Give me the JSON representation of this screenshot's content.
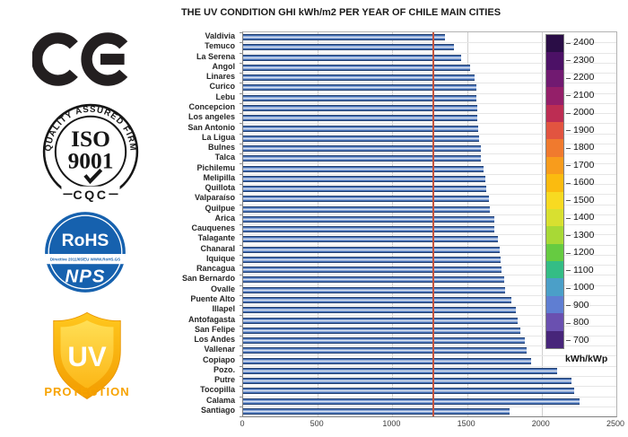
{
  "logos": {
    "ce": {
      "text": "CE"
    },
    "iso": {
      "arc_text": "QUALITY ASSURED FIRM",
      "line1": "ISO",
      "line2": "9001",
      "bottom": "CQC"
    },
    "rohs": {
      "title": "RoHS",
      "band_text": "Directive 2011/65/EU  WWW.RoHS.GS",
      "subtitle": "NPS",
      "circle_color": "#1661ae"
    },
    "uv": {
      "shield_text": "UV",
      "caption": "PROTECTION",
      "caption_color": "#f7a301"
    }
  },
  "chart_data": {
    "type": "bar",
    "orientation": "horizontal",
    "title": "THE UV CONDITION GHI kWh/m2 PER YEAR OF CHILE MAIN CITIES",
    "categories": [
      "Valdivia",
      "Temuco",
      "La Serena",
      "Angol",
      "Linares",
      "Curico",
      "Lebu",
      "Concepcion",
      "Los angeles",
      "San Antonio",
      "La Ligua",
      "Bulnes",
      "Talca",
      "Pichilemu",
      "Melipilla",
      "Quillota",
      "Valparaíso",
      "Quilpue",
      "Arica",
      "Cauquenes",
      "Talagante",
      "Chanaral",
      "Iquique",
      "Rancagua",
      "San Bernardo",
      "Ovalle",
      "Puente Alto",
      "Illapel",
      "Antofagasta",
      "San Felipe",
      "Los Andes",
      "Vallenar",
      "Copiapo",
      "Pozo.",
      "Putre",
      "Tocopilla",
      "Calama",
      "Santiago"
    ],
    "values": [
      1350,
      1410,
      1460,
      1520,
      1550,
      1560,
      1565,
      1570,
      1570,
      1575,
      1580,
      1590,
      1595,
      1610,
      1620,
      1630,
      1645,
      1650,
      1680,
      1685,
      1705,
      1720,
      1725,
      1730,
      1750,
      1755,
      1795,
      1825,
      1840,
      1855,
      1885,
      1900,
      1930,
      2105,
      2200,
      2215,
      2255,
      1785
    ],
    "xlim": [
      0,
      2500
    ],
    "x_ticks": [
      0,
      500,
      1000,
      1500,
      2000,
      2500
    ],
    "grid": true,
    "bar_color_main": "#4a74b9",
    "bar_color_edge": "#203d6d",
    "reference_line_x": 1270,
    "reference_line_color": "#c45540",
    "colorbar": {
      "unit_label": "kWh/kWp",
      "min": 700,
      "max": 2400,
      "tick_labels": [
        "2400",
        "2300",
        "2200",
        "2100",
        "2000",
        "1900",
        "1800",
        "1700",
        "1600",
        "1500",
        "1400",
        "1300",
        "1200",
        "1100",
        "1000",
        "900",
        "800",
        "700"
      ],
      "segment_colors": [
        "#2a0d46",
        "#4c1166",
        "#711a71",
        "#941f69",
        "#bd2d53",
        "#e25440",
        "#f07a2e",
        "#f89c1c",
        "#fbbb0f",
        "#f8da21",
        "#d8e030",
        "#a8d936",
        "#66cb41",
        "#34bd85",
        "#4b9fc8",
        "#5f7ed2",
        "#6a50b0",
        "#47257a"
      ]
    }
  }
}
